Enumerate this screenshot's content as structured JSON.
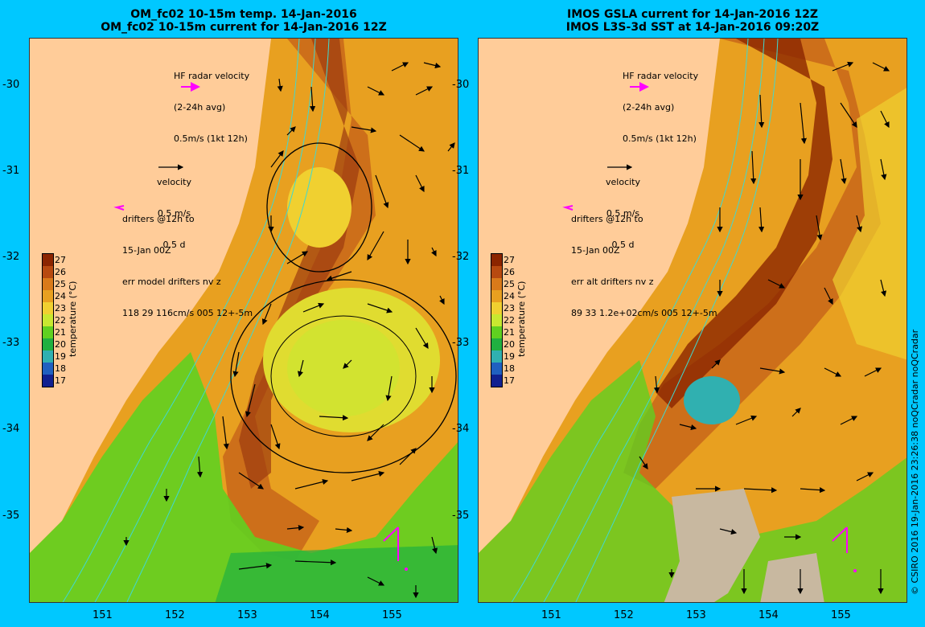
{
  "left_panel": {
    "title_line1": "OM_fc02 10-15m temp. 14-Jan-2016",
    "title_line2": "OM_fc02 10-15m current for 14-Jan-2016 12Z",
    "hf_radar": [
      "HF radar velocity",
      "(2-24h avg)",
      "0.5m/s (1kt 12h)"
    ],
    "velocity": [
      "velocity",
      "0.5 m/s",
      "0.5 d"
    ],
    "drifters": [
      "drifters @12h to",
      "15-Jan 00Z",
      "err model drifters nv z",
      "118 29 116cm/s 005 12+-5m"
    ]
  },
  "right_panel": {
    "title_line1": "IMOS GSLA current for 14-Jan-2016 12Z",
    "title_line2": "IMOS L3S-3d SST at 14-Jan-2016 09:20Z",
    "hf_radar": [
      "HF radar velocity",
      "(2-24h avg)",
      "0.5m/s (1kt 12h)"
    ],
    "velocity": [
      "velocity",
      "0.5 m/s",
      "0.5 d"
    ],
    "drifters": [
      "drifters @12h to",
      "15-Jan 00Z",
      "err alt drifters nv z",
      "89 33 1.2e+02cm/s 005 12+-5m"
    ]
  },
  "y_axis_labels": [
    "-30",
    "-31",
    "-32",
    "-33",
    "-34",
    "-35"
  ],
  "x_axis_labels": [
    "151",
    "152",
    "153",
    "154",
    "155"
  ],
  "colorbar": {
    "title": "temperature (°C)",
    "ticks": [
      "27",
      "26",
      "25",
      "24",
      "23",
      "22",
      "21",
      "20",
      "19",
      "18",
      "17"
    ],
    "colors": [
      "#8b2500",
      "#b84a10",
      "#d97a1a",
      "#e8a020",
      "#f0d030",
      "#c8e830",
      "#60d020",
      "#20b040",
      "#30b0b0",
      "#2060c0",
      "#102090"
    ]
  },
  "credit": "© CSIRO 2016   19-Jan-2016 23:26:38 noQCradar noQCradar",
  "colors": {
    "background": "#00c8ff",
    "land": "#ffcc99",
    "magenta": "#ff00ff",
    "isobath": "#40d8d0"
  }
}
